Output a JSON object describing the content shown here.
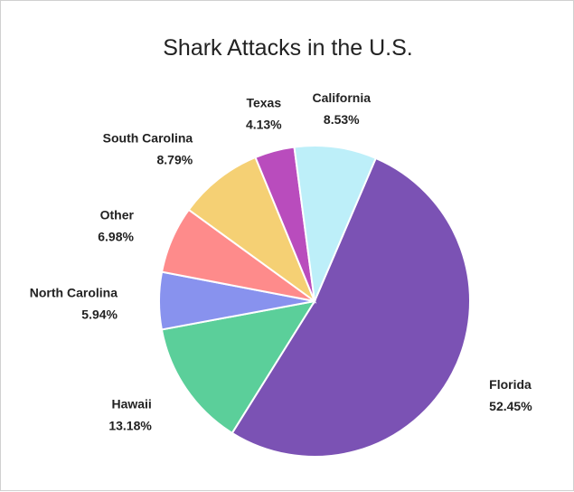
{
  "chart_data": {
    "type": "pie",
    "title": "Shark Attacks in the U.S.",
    "slices": [
      {
        "label": "Florida",
        "value": 52.45,
        "display": "52.45%",
        "color": "#7b52b4"
      },
      {
        "label": "Hawaii",
        "value": 13.18,
        "display": "13.18%",
        "color": "#5bcf9a"
      },
      {
        "label": "North Carolina",
        "value": 5.94,
        "display": "5.94%",
        "color": "#8892ee"
      },
      {
        "label": "Other",
        "value": 6.98,
        "display": "6.98%",
        "color": "#fe8b8b"
      },
      {
        "label": "South Carolina",
        "value": 8.79,
        "display": "8.79%",
        "color": "#f5d074"
      },
      {
        "label": "Texas",
        "value": 4.13,
        "display": "4.13%",
        "color": "#b94cbd"
      },
      {
        "label": "California",
        "value": 8.53,
        "display": "8.53%",
        "color": "#bdeff9"
      }
    ]
  }
}
